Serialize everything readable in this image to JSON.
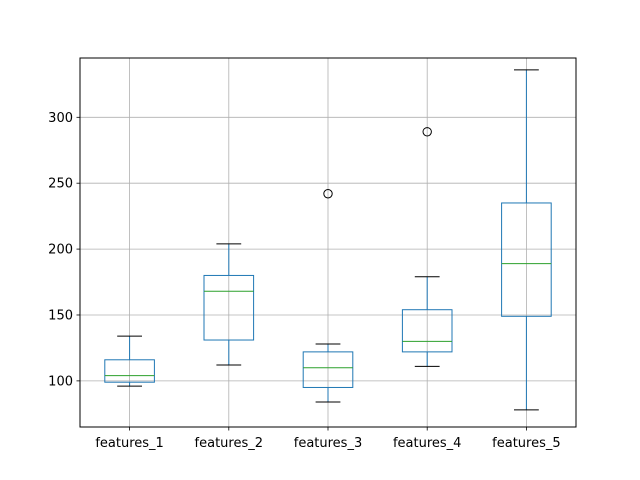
{
  "chart_data": {
    "type": "boxplot",
    "categories": [
      "features_1",
      "features_2",
      "features_3",
      "features_4",
      "features_5"
    ],
    "boxes": [
      {
        "name": "features_1",
        "whislo": 96,
        "q1": 99,
        "med": 104,
        "q3": 116,
        "whishi": 134,
        "fliers": []
      },
      {
        "name": "features_2",
        "whislo": 112,
        "q1": 131,
        "med": 168,
        "q3": 180,
        "whishi": 204,
        "fliers": []
      },
      {
        "name": "features_3",
        "whislo": 84,
        "q1": 95,
        "med": 110,
        "q3": 122,
        "whishi": 128,
        "fliers": [
          242
        ]
      },
      {
        "name": "features_4",
        "whislo": 111,
        "q1": 122,
        "med": 130,
        "q3": 154,
        "whishi": 179,
        "fliers": [
          289
        ]
      },
      {
        "name": "features_5",
        "whislo": 78,
        "q1": 149,
        "med": 189,
        "q3": 235,
        "whishi": 336,
        "fliers": []
      }
    ],
    "yticks": [
      100,
      150,
      200,
      250,
      300
    ],
    "ylim": [
      65,
      345
    ],
    "grid": true,
    "title": "",
    "xlabel": "",
    "ylabel": "",
    "colors": {
      "box": "#1f77b4",
      "median": "#2ca02c",
      "flier": "#000000",
      "grid": "#b0b0b0",
      "whisker": "#1f77b4",
      "cap": "#000000"
    }
  }
}
